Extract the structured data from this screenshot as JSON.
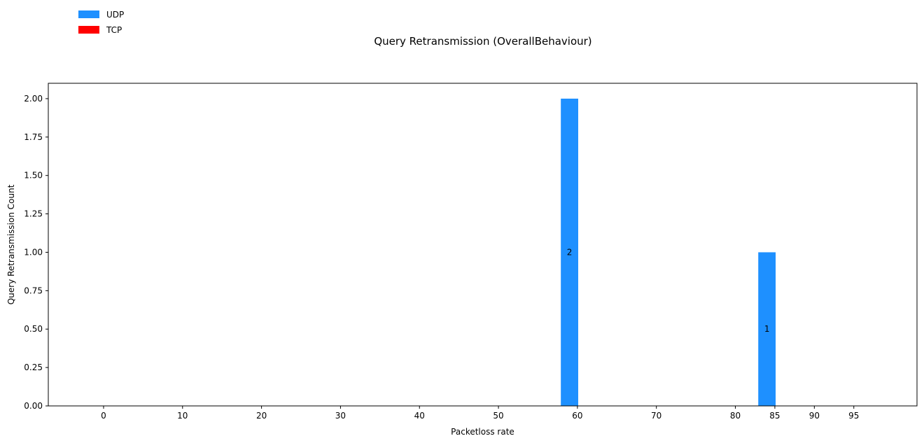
{
  "chart_data": {
    "type": "bar",
    "title": "Query Retransmission (OverallBehaviour)",
    "xlabel": "Packetloss rate",
    "ylabel": "Query Retransmission Count",
    "x_ticks": [
      0,
      10,
      20,
      30,
      40,
      50,
      60,
      70,
      80,
      85,
      90,
      95
    ],
    "xlim": [
      -7,
      103
    ],
    "ylim": [
      0,
      2.1
    ],
    "y_ticks": [
      0.0,
      0.25,
      0.5,
      0.75,
      1.0,
      1.25,
      1.5,
      1.75,
      2.0
    ],
    "y_tick_labels": [
      "0.00",
      "0.25",
      "0.50",
      "0.75",
      "1.00",
      "1.25",
      "1.50",
      "1.75",
      "2.00"
    ],
    "grid": false,
    "legend_placement": "top-left",
    "series": [
      {
        "name": "UDP",
        "color": "#1e90ff",
        "bars": [
          {
            "x": 59,
            "value": 2,
            "label": "2"
          },
          {
            "x": 84,
            "value": 1,
            "label": "1"
          }
        ]
      },
      {
        "name": "TCP",
        "color": "#ff0000",
        "bars": []
      }
    ]
  }
}
